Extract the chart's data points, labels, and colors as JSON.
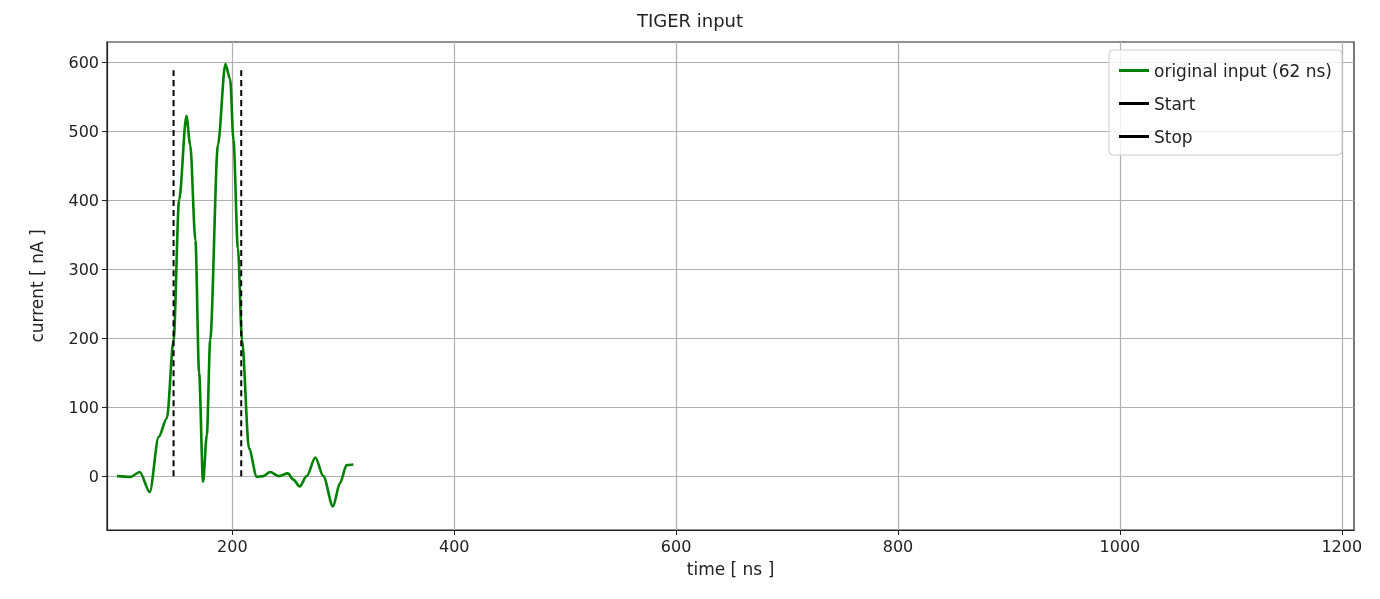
{
  "chart_data": {
    "type": "line",
    "title": "TIGER input",
    "xlabel": "time [ ns ]",
    "ylabel": "current [ nA ]",
    "xlim": [
      87,
      1211
    ],
    "xticks": [
      200,
      400,
      600,
      800,
      1000,
      1200
    ],
    "ylim": [
      -78,
      629
    ],
    "yticks": [
      0,
      100,
      200,
      300,
      400,
      500,
      600
    ],
    "grid": true,
    "legend": "top right",
    "marker": "none",
    "series": [
      {
        "name": "original input (62 ns)",
        "color": "#008000",
        "line_style": "solid",
        "x": [
          96,
          108,
          116.5,
          125.5,
          133.6,
          141,
          147,
          152,
          158.6,
          162,
          166.7,
          170,
          173.6,
          177,
          180,
          187,
          193.7,
          198,
          201,
          205,
          208.7,
          215,
          222,
          228,
          234,
          242,
          250,
          255,
          260.6,
          267,
          274.8,
          282,
          290.7,
          297,
          303,
          309
        ],
        "values": [
          0,
          -1,
          6,
          -23,
          57,
          84,
          197,
          400,
          522,
          480,
          342,
          150,
          -8,
          60,
          197,
          480,
          597,
          575,
          487,
          330,
          197,
          40,
          -1,
          0,
          6,
          0,
          4,
          -5,
          -15,
          0,
          27,
          0,
          -44,
          -10,
          16,
          17
        ]
      },
      {
        "name": "Start",
        "color": "#000000",
        "line_style": "dashed",
        "x": [
          147,
          147
        ],
        "values": [
          0,
          590
        ]
      },
      {
        "name": "Stop",
        "color": "#000000",
        "line_style": "dashed",
        "x": [
          208,
          208
        ],
        "values": [
          0,
          590
        ]
      }
    ]
  }
}
